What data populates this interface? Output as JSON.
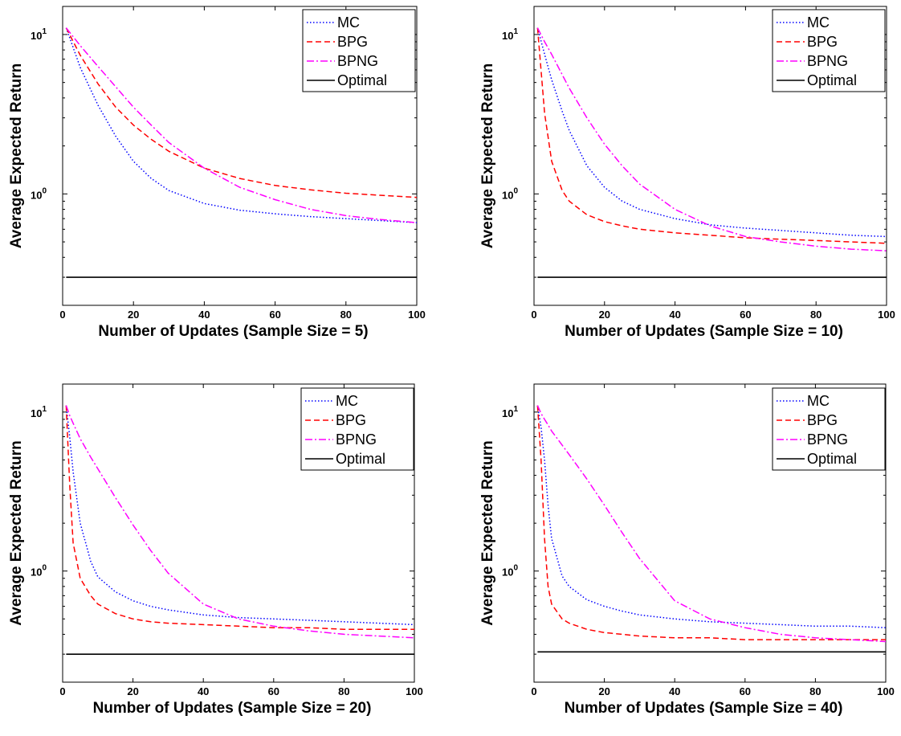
{
  "chart_data": [
    {
      "type": "line",
      "title": "",
      "xlabel": "Number of Updates (Sample Size = 5)",
      "ylabel": "Average Expected Return",
      "xlim": [
        0,
        100
      ],
      "ylim": [
        0.2,
        15
      ],
      "y_scale": "log",
      "x_ticks": [
        "0",
        "20",
        "40",
        "60",
        "80",
        "100"
      ],
      "y_ticks": [
        {
          "base": "10",
          "exp": "0"
        },
        {
          "base": "10",
          "exp": "1"
        }
      ],
      "legend_position": "top-right",
      "x": [
        1,
        5,
        10,
        15,
        20,
        25,
        30,
        40,
        50,
        60,
        70,
        80,
        90,
        100
      ],
      "series": [
        {
          "name": "MC",
          "color": "#0000ff",
          "dash": "dotted",
          "values": [
            11,
            6.2,
            3.6,
            2.3,
            1.6,
            1.25,
            1.05,
            0.87,
            0.79,
            0.75,
            0.72,
            0.7,
            0.68,
            0.66
          ]
        },
        {
          "name": "BPG",
          "color": "#ff0000",
          "dash": "dashed",
          "values": [
            11,
            7.4,
            4.9,
            3.5,
            2.7,
            2.2,
            1.85,
            1.45,
            1.25,
            1.13,
            1.06,
            1.01,
            0.98,
            0.95
          ]
        },
        {
          "name": "BPNG",
          "color": "#ff00ff",
          "dash": "dashdot",
          "values": [
            11,
            8.5,
            6.3,
            4.7,
            3.5,
            2.7,
            2.1,
            1.45,
            1.1,
            0.92,
            0.8,
            0.73,
            0.69,
            0.66
          ]
        },
        {
          "name": "Optimal",
          "color": "#000000",
          "dash": "solid",
          "values": [
            0.3,
            0.3,
            0.3,
            0.3,
            0.3,
            0.3,
            0.3,
            0.3,
            0.3,
            0.3,
            0.3,
            0.3,
            0.3,
            0.3
          ]
        }
      ]
    },
    {
      "type": "line",
      "title": "",
      "xlabel": "Number of Updates (Sample Size = 10)",
      "ylabel": "Average Expected Return",
      "xlim": [
        0,
        100
      ],
      "ylim": [
        0.2,
        15
      ],
      "y_scale": "log",
      "x_ticks": [
        "0",
        "20",
        "40",
        "60",
        "80",
        "100"
      ],
      "y_ticks": [
        {
          "base": "10",
          "exp": "0"
        },
        {
          "base": "10",
          "exp": "1"
        }
      ],
      "legend_position": "top-right",
      "x": [
        1,
        3,
        5,
        8,
        10,
        15,
        20,
        25,
        30,
        40,
        50,
        60,
        70,
        80,
        90,
        100
      ],
      "series": [
        {
          "name": "MC",
          "color": "#0000ff",
          "dash": "dotted",
          "values": [
            11,
            7.5,
            5.2,
            3.3,
            2.5,
            1.5,
            1.1,
            0.9,
            0.8,
            0.7,
            0.64,
            0.61,
            0.59,
            0.57,
            0.55,
            0.54
          ]
        },
        {
          "name": "BPG",
          "color": "#ff0000",
          "dash": "dashed",
          "values": [
            11,
            3.2,
            1.6,
            1.05,
            0.9,
            0.74,
            0.67,
            0.63,
            0.6,
            0.57,
            0.55,
            0.53,
            0.52,
            0.51,
            0.5,
            0.49
          ]
        },
        {
          "name": "BPNG",
          "color": "#ff00ff",
          "dash": "dashdot",
          "values": [
            11,
            9,
            7.5,
            5.6,
            4.6,
            3,
            2.05,
            1.5,
            1.15,
            0.8,
            0.63,
            0.54,
            0.5,
            0.47,
            0.45,
            0.44
          ]
        },
        {
          "name": "Optimal",
          "color": "#000000",
          "dash": "solid",
          "values": [
            0.3,
            0.3,
            0.3,
            0.3,
            0.3,
            0.3,
            0.3,
            0.3,
            0.3,
            0.3,
            0.3,
            0.3,
            0.3,
            0.3,
            0.3,
            0.3
          ]
        }
      ]
    },
    {
      "type": "line",
      "title": "",
      "xlabel": "Number of Updates (Sample Size = 20)",
      "ylabel": "Average Expected Return",
      "xlim": [
        0,
        100
      ],
      "ylim": [
        0.2,
        15
      ],
      "y_scale": "log",
      "x_ticks": [
        "0",
        "20",
        "40",
        "60",
        "80",
        "100"
      ],
      "y_ticks": [
        {
          "base": "10",
          "exp": "0"
        },
        {
          "base": "10",
          "exp": "1"
        }
      ],
      "legend_position": "top-right",
      "x": [
        1,
        2,
        3,
        5,
        8,
        10,
        15,
        20,
        25,
        30,
        40,
        50,
        60,
        70,
        80,
        90,
        100
      ],
      "series": [
        {
          "name": "MC",
          "color": "#0000ff",
          "dash": "dotted",
          "values": [
            11,
            7,
            4.2,
            2,
            1.15,
            0.92,
            0.74,
            0.65,
            0.6,
            0.57,
            0.53,
            0.51,
            0.5,
            0.49,
            0.48,
            0.47,
            0.46
          ]
        },
        {
          "name": "BPG",
          "color": "#ff0000",
          "dash": "dashed",
          "values": [
            11,
            3.5,
            1.5,
            0.9,
            0.7,
            0.62,
            0.54,
            0.5,
            0.48,
            0.47,
            0.46,
            0.45,
            0.44,
            0.44,
            0.43,
            0.43,
            0.43
          ]
        },
        {
          "name": "BPNG",
          "color": "#ff00ff",
          "dash": "dashdot",
          "values": [
            11,
            9.5,
            8.5,
            6.8,
            5.2,
            4.4,
            2.9,
            1.95,
            1.35,
            0.97,
            0.62,
            0.5,
            0.45,
            0.42,
            0.4,
            0.39,
            0.38
          ]
        },
        {
          "name": "Optimal",
          "color": "#000000",
          "dash": "solid",
          "values": [
            0.3,
            0.3,
            0.3,
            0.3,
            0.3,
            0.3,
            0.3,
            0.3,
            0.3,
            0.3,
            0.3,
            0.3,
            0.3,
            0.3,
            0.3,
            0.3,
            0.3
          ]
        }
      ]
    },
    {
      "type": "line",
      "title": "",
      "xlabel": "Number of Updates (Sample Size = 40)",
      "ylabel": "Average Expected Return",
      "xlim": [
        0,
        100
      ],
      "ylim": [
        0.2,
        15
      ],
      "y_scale": "log",
      "x_ticks": [
        "0",
        "20",
        "40",
        "60",
        "80",
        "100"
      ],
      "y_ticks": [
        {
          "base": "10",
          "exp": "0"
        },
        {
          "base": "10",
          "exp": "1"
        }
      ],
      "legend_position": "top-right",
      "x": [
        1,
        2,
        3,
        4,
        5,
        8,
        10,
        15,
        20,
        25,
        30,
        40,
        50,
        60,
        70,
        80,
        90,
        100
      ],
      "series": [
        {
          "name": "MC",
          "color": "#0000ff",
          "dash": "dotted",
          "values": [
            11,
            8,
            5,
            2.6,
            1.6,
            0.93,
            0.8,
            0.66,
            0.6,
            0.56,
            0.53,
            0.5,
            0.48,
            0.47,
            0.46,
            0.45,
            0.45,
            0.44
          ]
        },
        {
          "name": "BPG",
          "color": "#ff0000",
          "dash": "dashed",
          "values": [
            11,
            5,
            1.6,
            0.8,
            0.62,
            0.5,
            0.47,
            0.43,
            0.41,
            0.4,
            0.39,
            0.38,
            0.38,
            0.37,
            0.37,
            0.37,
            0.37,
            0.37
          ]
        },
        {
          "name": "BPNG",
          "color": "#ff00ff",
          "dash": "dashdot",
          "values": [
            11,
            9.8,
            9,
            8.3,
            7.6,
            6.2,
            5.4,
            3.8,
            2.6,
            1.75,
            1.2,
            0.65,
            0.5,
            0.44,
            0.4,
            0.38,
            0.37,
            0.36
          ]
        },
        {
          "name": "Optimal",
          "color": "#000000",
          "dash": "solid",
          "values": [
            0.31,
            0.31,
            0.31,
            0.31,
            0.31,
            0.31,
            0.31,
            0.31,
            0.31,
            0.31,
            0.31,
            0.31,
            0.31,
            0.31,
            0.31,
            0.31,
            0.31,
            0.31
          ]
        }
      ]
    }
  ]
}
